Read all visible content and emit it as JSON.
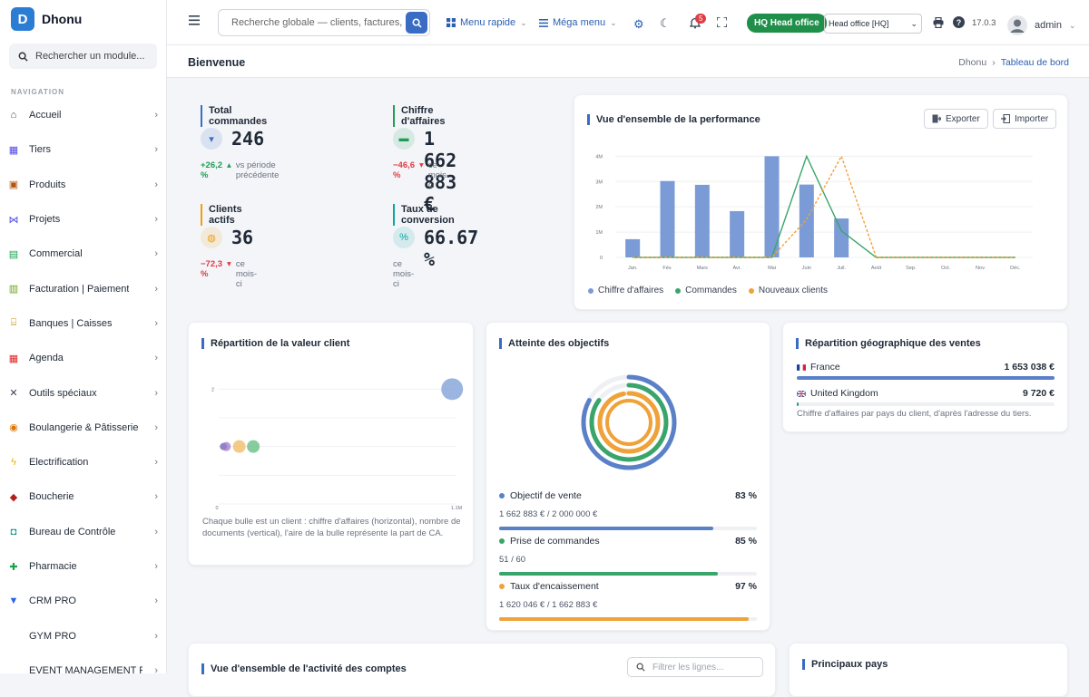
{
  "app": {
    "name": "Dhonu",
    "logo_letter": "D"
  },
  "sidebar": {
    "search_label": "Rechercher un module...",
    "nav_heading": "NAVIGATION",
    "items": [
      {
        "label": "Accueil",
        "icon": "home-icon",
        "color": "#374151"
      },
      {
        "label": "Tiers",
        "icon": "building-icon",
        "color": "#4f46e5"
      },
      {
        "label": "Produits",
        "icon": "box-icon",
        "color": "#b45309"
      },
      {
        "label": "Projets",
        "icon": "network-icon",
        "color": "#4f46e5"
      },
      {
        "label": "Commercial",
        "icon": "suitcase-icon",
        "color": "#16a34a"
      },
      {
        "label": "Facturation | Paiement",
        "icon": "invoice-icon",
        "color": "#65a30d"
      },
      {
        "label": "Banques | Caisses",
        "icon": "bank-icon",
        "color": "#ca8a04"
      },
      {
        "label": "Agenda",
        "icon": "calendar-icon",
        "color": "#dc2626"
      },
      {
        "label": "Outils spéciaux",
        "icon": "tools-icon",
        "color": "#374151"
      },
      {
        "label": "Boulangerie & Pâtisserie",
        "icon": "bread-icon",
        "color": "#d97706"
      },
      {
        "label": "Electrification",
        "icon": "bolt-icon",
        "color": "#eab308"
      },
      {
        "label": "Boucherie",
        "icon": "meat-icon",
        "color": "#b91c1c"
      },
      {
        "label": "Bureau de Contrôle",
        "icon": "control-icon",
        "color": "#0d9488"
      },
      {
        "label": "Pharmacie",
        "icon": "cross-icon",
        "color": "#16a34a"
      },
      {
        "label": "CRM PRO",
        "icon": "funnel-icon",
        "color": "#2563eb"
      },
      {
        "label": "GYM PRO",
        "icon": "",
        "color": "#374151"
      },
      {
        "label": "EVENT MANAGEMENT P...",
        "icon": "",
        "color": "#374151"
      }
    ]
  },
  "topbar": {
    "search_placeholder": "Recherche globale — clients, factures, p",
    "quick_menu": "Menu rapide",
    "mega_menu": "Méga menu",
    "notif_count": "5",
    "hq_badge": "HQ Head office",
    "entity_select": "Head office [HQ]",
    "version": "17.0.3",
    "user": "admin"
  },
  "breadcrumb": {
    "page_title": "Bienvenue",
    "root": "Dhonu",
    "current": "Tableau de bord"
  },
  "kpis": [
    {
      "label": "Total commandes",
      "value": "246",
      "delta": "+26,2 %",
      "trend": "up",
      "note": "vs période précédente",
      "accent": "#3a6cc4",
      "icon": "cart-icon"
    },
    {
      "label": "Chiffre d'affaires",
      "value": "1 662 883 €",
      "delta": "−46,6 %",
      "trend": "down",
      "note": "ce mois-ci",
      "accent": "#1f9d55",
      "icon": "cash-icon"
    },
    {
      "label": "Clients actifs",
      "value": "36",
      "delta": "−72,3 %",
      "trend": "down",
      "note": "ce mois-ci",
      "accent": "#f59e0b",
      "icon": "users-icon"
    },
    {
      "label": "Taux de conversion",
      "value": "66.67 %",
      "delta": "",
      "trend": "",
      "note": "ce mois-ci",
      "accent": "#0ea5a4",
      "icon": "percent-icon"
    }
  ],
  "performance": {
    "title": "Vue d'ensemble de la performance",
    "export_label": "Exporter",
    "import_label": "Importer"
  },
  "chart_data": [
    {
      "type": "bar",
      "categories": [
        "Jan.",
        "Fév.",
        "Mars",
        "Avr.",
        "Mai",
        "Juin",
        "Juil.",
        "Août",
        "Sep.",
        "Oct.",
        "Nov.",
        "Déc."
      ],
      "y_ticks": [
        "0",
        "1M",
        "2M",
        "3M",
        "4M"
      ],
      "ylim": [
        0,
        4300000
      ],
      "series": [
        {
          "name": "Chiffre d'affaires",
          "kind": "bar",
          "color": "#7b9bd6",
          "values": [
            720000,
            3020000,
            2870000,
            1830000,
            4000000,
            2880000,
            1540000,
            0,
            0,
            0,
            0,
            0
          ]
        },
        {
          "name": "Commandes",
          "kind": "line",
          "color": "#3aa56a",
          "values": [
            0,
            0,
            0,
            0,
            0,
            4000000,
            1050000,
            0,
            0,
            0,
            0,
            0
          ]
        },
        {
          "name": "Nouveaux clients",
          "kind": "dashed-line",
          "color": "#f0a23a",
          "values": [
            0,
            0,
            0,
            0,
            0,
            1500000,
            4000000,
            0,
            0,
            0,
            0,
            0
          ]
        }
      ]
    },
    {
      "type": "scatter",
      "x_ticks": [
        "0",
        "1.1M"
      ],
      "y_ticks": [
        "2"
      ],
      "xlim": [
        0,
        1100000
      ],
      "ylim": [
        0,
        2.4
      ],
      "points": [
        {
          "x": 1080000,
          "y": 2,
          "r": 12,
          "color": "#7b9bd6"
        },
        {
          "x": 22000,
          "y": 1,
          "r": 4,
          "color": "#5567b0"
        },
        {
          "x": 35000,
          "y": 1,
          "r": 5,
          "color": "#9f7ac8"
        },
        {
          "x": 95000,
          "y": 1,
          "r": 7,
          "color": "#f0b860"
        },
        {
          "x": 160000,
          "y": 1,
          "r": 7,
          "color": "#5fbb7f"
        }
      ]
    }
  ],
  "customer_value": {
    "title": "Répartition de la valeur client",
    "description": "Chaque bulle est un client : chiffre d'affaires (horizontal), nombre de documents (vertical), l'aire de la bulle représente la part de CA."
  },
  "objectives": {
    "title": "Atteinte des objectifs",
    "items": [
      {
        "name": "Objectif de vente",
        "pct": "83 %",
        "value": 83,
        "detail": "1 662 883 € / 2 000 000 €",
        "color": "#5a80c8"
      },
      {
        "name": "Prise de commandes",
        "pct": "85 %",
        "value": 85,
        "detail": "51 / 60",
        "color": "#3aa56a"
      },
      {
        "name": "Taux d'encaissement",
        "pct": "97 %",
        "value": 97,
        "detail": "1 620 046 € / 1 662 883 €",
        "color": "#f0a23a"
      }
    ]
  },
  "geo": {
    "title": "Répartition géographique des ventes",
    "rows": [
      {
        "country": "France",
        "value": "1 653 038 €",
        "share": 100
      },
      {
        "country": "United Kingdom",
        "value": "9 720 €",
        "share": 0.6
      }
    ],
    "note": "Chiffre d'affaires par pays du client, d'après l'adresse du tiers."
  },
  "accounts": {
    "title": "Vue d'ensemble de l'activité des comptes",
    "filter_placeholder": "Filtrer les lignes..."
  },
  "countries": {
    "title": "Principaux pays"
  }
}
